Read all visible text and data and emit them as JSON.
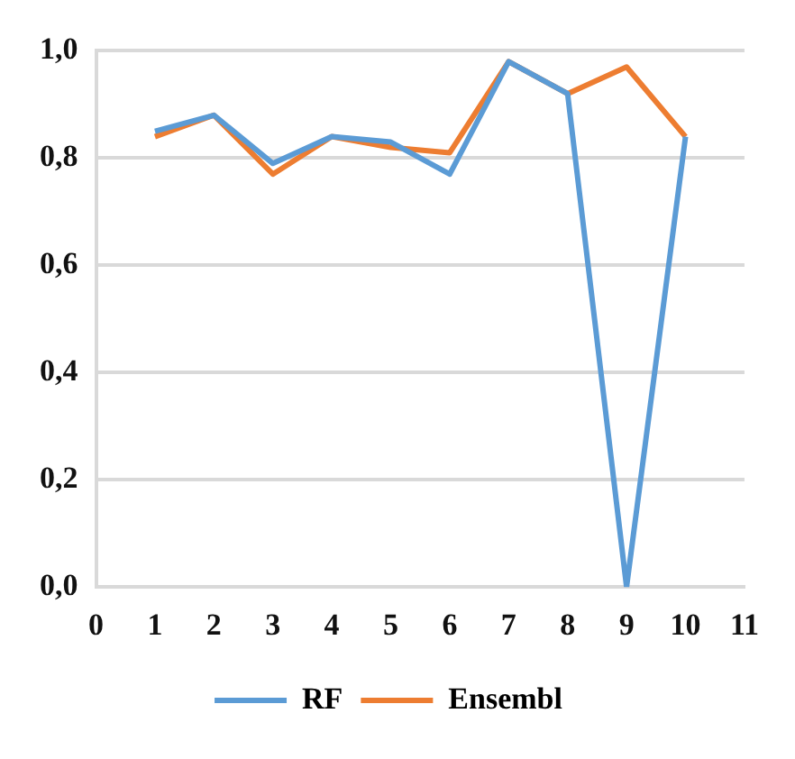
{
  "chart_data": {
    "type": "line",
    "x": [
      1,
      2,
      3,
      4,
      5,
      6,
      7,
      8,
      9,
      10
    ],
    "series": [
      {
        "name": "RF",
        "color": "#5b9bd5",
        "values": [
          0.85,
          0.88,
          0.79,
          0.84,
          0.83,
          0.77,
          0.98,
          0.92,
          0,
          0.84
        ]
      },
      {
        "name": "Ensembl",
        "color": "#ed7d31",
        "values": [
          0.84,
          0.88,
          0.77,
          0.84,
          0.82,
          0.81,
          0.98,
          0.92,
          0.97,
          0.84
        ]
      }
    ],
    "xlim": [
      0,
      11
    ],
    "xticks": [
      0,
      1,
      2,
      3,
      4,
      5,
      6,
      7,
      8,
      9,
      10,
      11
    ],
    "ylim": [
      0,
      1
    ],
    "yticks": [
      {
        "value": 0,
        "label": "0,0"
      },
      {
        "value": 0.2,
        "label": "0,2"
      },
      {
        "value": 0.4,
        "label": "0,4"
      },
      {
        "value": 0.6,
        "label": "0,6"
      },
      {
        "value": 0.8,
        "label": "0,8"
      },
      {
        "value": 1,
        "label": "1,0"
      }
    ],
    "grid": "y",
    "legend": "bottom",
    "marker": "none",
    "line_style": "solid"
  }
}
